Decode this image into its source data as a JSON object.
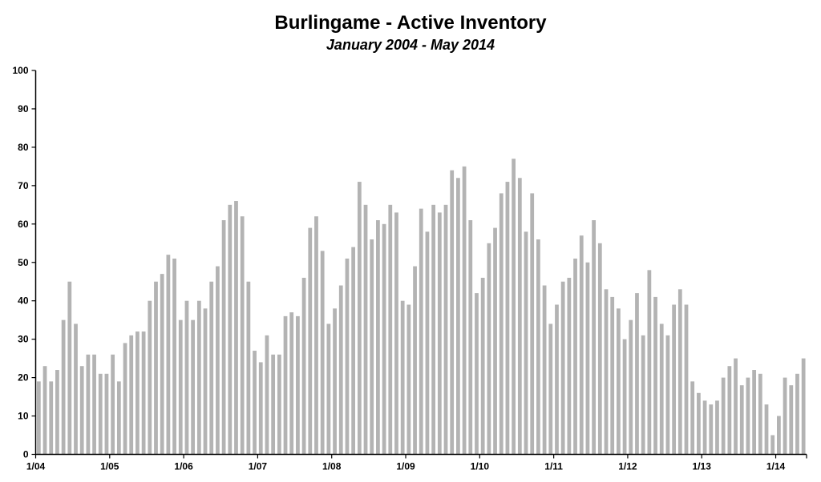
{
  "chart_data": {
    "type": "bar",
    "title": "Burlingame - Active Inventory",
    "subtitle": "January 2004 - May 2014",
    "xlabel": "",
    "ylabel": "",
    "ylim": [
      0,
      100
    ],
    "yticks": [
      0,
      10,
      20,
      30,
      40,
      50,
      60,
      70,
      80,
      90,
      100
    ],
    "xtick_labels": [
      "1/04",
      "1/05",
      "1/06",
      "1/07",
      "1/08",
      "1/09",
      "1/10",
      "1/11",
      "1/12",
      "1/13",
      "1/14"
    ],
    "bar_color": "#b3b3b3",
    "grid": false,
    "categories": [
      "1/04",
      "2/04",
      "3/04",
      "4/04",
      "5/04",
      "6/04",
      "7/04",
      "8/04",
      "9/04",
      "10/04",
      "11/04",
      "12/04",
      "1/05",
      "2/05",
      "3/05",
      "4/05",
      "5/05",
      "6/05",
      "7/05",
      "8/05",
      "9/05",
      "10/05",
      "11/05",
      "12/05",
      "1/06",
      "2/06",
      "3/06",
      "4/06",
      "5/06",
      "6/06",
      "7/06",
      "8/06",
      "9/06",
      "10/06",
      "11/06",
      "12/06",
      "1/07",
      "2/07",
      "3/07",
      "4/07",
      "5/07",
      "6/07",
      "7/07",
      "8/07",
      "9/07",
      "10/07",
      "11/07",
      "12/07",
      "1/08",
      "2/08",
      "3/08",
      "4/08",
      "5/08",
      "6/08",
      "7/08",
      "8/08",
      "9/08",
      "10/08",
      "11/08",
      "12/08",
      "1/09",
      "2/09",
      "3/09",
      "4/09",
      "5/09",
      "6/09",
      "7/09",
      "8/09",
      "9/09",
      "10/09",
      "11/09",
      "12/09",
      "1/10",
      "2/10",
      "3/10",
      "4/10",
      "5/10",
      "6/10",
      "7/10",
      "8/10",
      "9/10",
      "10/10",
      "11/10",
      "12/10",
      "1/11",
      "2/11",
      "3/11",
      "4/11",
      "5/11",
      "6/11",
      "7/11",
      "8/11",
      "9/11",
      "10/11",
      "11/11",
      "12/11",
      "1/12",
      "2/12",
      "3/12",
      "4/12",
      "5/12",
      "6/12",
      "7/12",
      "8/12",
      "9/12",
      "10/12",
      "11/12",
      "12/12",
      "1/13",
      "2/13",
      "3/13",
      "4/13",
      "5/13",
      "6/13",
      "7/13",
      "8/13",
      "9/13",
      "10/13",
      "11/13",
      "12/13",
      "1/14",
      "2/14",
      "3/14",
      "4/14",
      "5/14"
    ],
    "values": [
      19,
      23,
      19,
      22,
      35,
      45,
      34,
      23,
      26,
      26,
      21,
      21,
      26,
      19,
      29,
      31,
      32,
      32,
      40,
      45,
      47,
      52,
      51,
      35,
      40,
      35,
      40,
      38,
      45,
      49,
      61,
      65,
      66,
      62,
      45,
      27,
      24,
      31,
      26,
      26,
      36,
      37,
      36,
      46,
      59,
      62,
      53,
      34,
      38,
      44,
      51,
      54,
      71,
      65,
      56,
      61,
      60,
      65,
      63,
      40,
      39,
      49,
      64,
      58,
      65,
      63,
      65,
      74,
      72,
      75,
      61,
      42,
      46,
      55,
      59,
      68,
      71,
      77,
      72,
      58,
      68,
      56,
      44,
      34,
      39,
      45,
      46,
      51,
      57,
      50,
      61,
      55,
      43,
      41,
      38,
      30,
      35,
      42,
      31,
      48,
      41,
      34,
      31,
      39,
      43,
      39,
      19,
      16,
      14,
      13,
      14,
      20,
      23,
      25,
      18,
      20,
      22,
      21,
      13,
      5,
      10,
      20,
      18,
      21,
      25
    ]
  }
}
